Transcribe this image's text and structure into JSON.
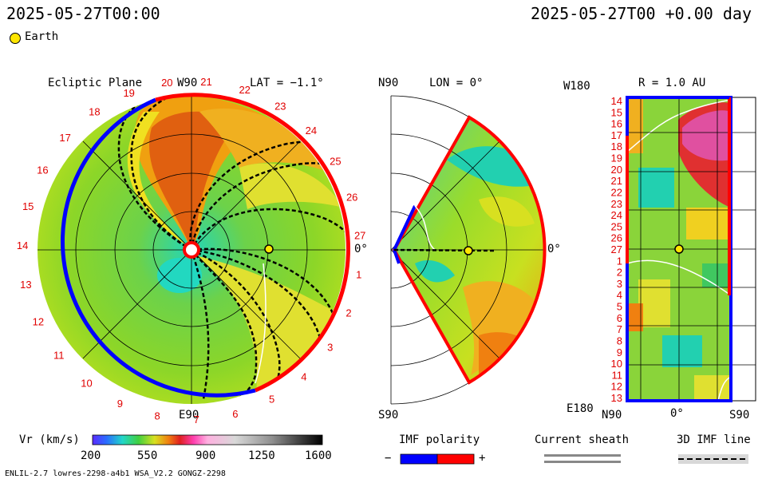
{
  "header": {
    "left_time": "2025-05-27T00:00",
    "right_time": "2025-05-27T00 +0.00 day"
  },
  "legend": {
    "earth_label": "Earth",
    "earth_color": "#ffe600"
  },
  "ecliptic": {
    "title": "Ecliptic Plane",
    "lat_label": "LAT = −1.1°",
    "top_label": "W90",
    "bottom_label": "E90",
    "right_label": "0°",
    "carrington_ticks": [
      "1",
      "2",
      "3",
      "4",
      "5",
      "6",
      "7",
      "8",
      "9",
      "10",
      "11",
      "12",
      "13",
      "14",
      "15",
      "16",
      "17",
      "18",
      "19",
      "20",
      "21",
      "22",
      "23",
      "24",
      "25",
      "26",
      "27"
    ]
  },
  "meridional": {
    "title": "LON = 0°",
    "top_label": "N90",
    "bottom_label": "S90",
    "right_label": "0°"
  },
  "sphere": {
    "title": "R = 1.0 AU",
    "top_left_label": "W180",
    "bottom_left_label": "E180",
    "rows": [
      "14",
      "15",
      "16",
      "17",
      "18",
      "19",
      "20",
      "21",
      "22",
      "23",
      "24",
      "25",
      "26",
      "27",
      "1",
      "2",
      "3",
      "4",
      "5",
      "6",
      "7",
      "8",
      "9",
      "10",
      "11",
      "12",
      "13"
    ],
    "x_labels": [
      "N90",
      "0°",
      "S90"
    ]
  },
  "colorbar": {
    "label": "Vr (km/s)",
    "ticks": [
      "200",
      "550",
      "900",
      "1250",
      "1600"
    ]
  },
  "imf": {
    "title": "IMF polarity",
    "minus": "−",
    "plus": "+",
    "neg_color": "#0000ff",
    "pos_color": "#ff0000"
  },
  "sheath": {
    "title": "Current sheath"
  },
  "imf3d": {
    "title": "3D IMF line"
  },
  "footer": {
    "model": "ENLIL-2.7 lowres-2298-a4b1 WSA_V2.2 GONGZ-2298"
  }
}
